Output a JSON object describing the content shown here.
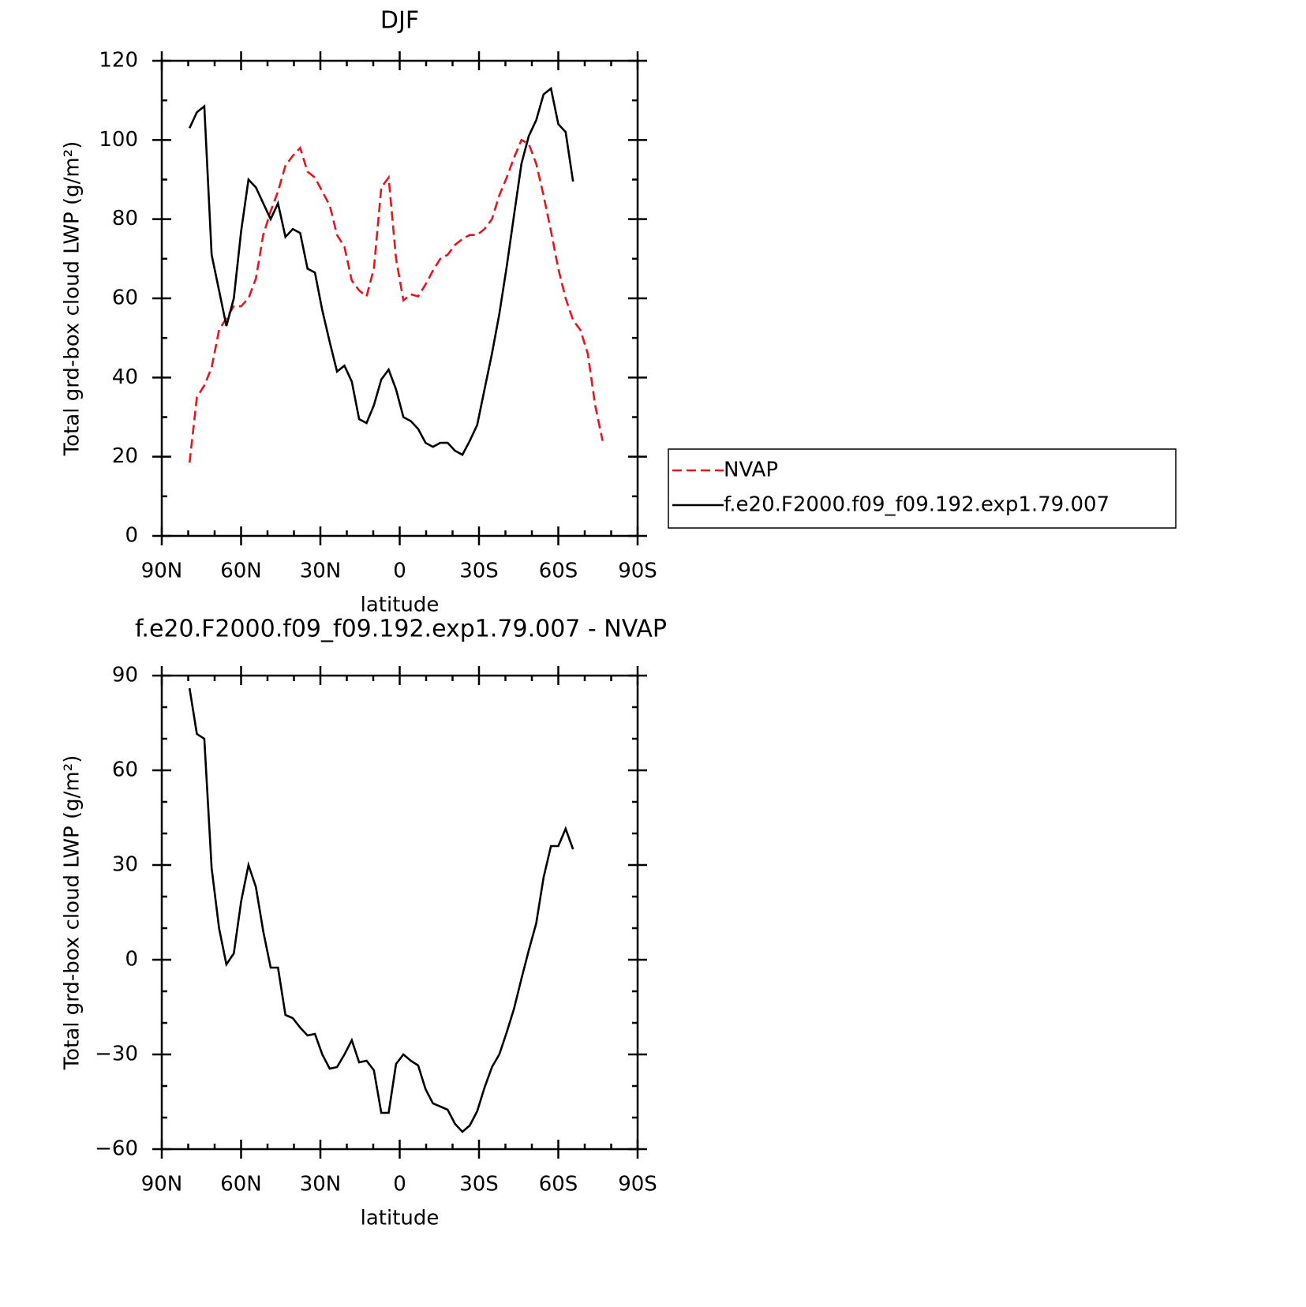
{
  "chart_data": [
    {
      "type": "line",
      "title": "DJF",
      "xlabel": "latitude",
      "ylabel": "Total grd-box cloud LWP (g/m²)",
      "xlim": [
        90,
        -90
      ],
      "xticks": [
        {
          "value": 90,
          "label": "90N"
        },
        {
          "value": 60,
          "label": "60N"
        },
        {
          "value": 30,
          "label": "30N"
        },
        0,
        {
          "value": -30,
          "label": "30S"
        },
        {
          "value": -60,
          "label": "60S"
        },
        {
          "value": -90,
          "label": "90S"
        }
      ],
      "ylim": [
        0,
        120
      ],
      "yticks": [
        0,
        20,
        40,
        60,
        80,
        100,
        120
      ],
      "legend": "right",
      "x": [
        79.5,
        76.71,
        73.92,
        71.13,
        68.34,
        65.55,
        62.76,
        59.97,
        57.18,
        54.39,
        51.6,
        48.81,
        46.02,
        43.23,
        40.44,
        37.65,
        34.86,
        32.07,
        29.28,
        26.49,
        23.7,
        20.91,
        18.12,
        15.33,
        12.54,
        9.75,
        6.96,
        4.17,
        1.38,
        -1.41,
        -4.2,
        -6.99,
        -9.78,
        -12.57,
        -15.36,
        -18.15,
        -20.94,
        -23.73,
        -26.52,
        -29.31,
        -32.1,
        -34.89,
        -37.68,
        -40.47,
        -43.26,
        -46.05,
        -48.84,
        -51.63,
        -54.42,
        -57.21,
        -60,
        -62.79,
        -65.58,
        -68.37,
        -71.16,
        -73.95,
        -76.74
      ],
      "series": [
        {
          "name": "NVAP",
          "color": "#e8141b",
          "dashed": true,
          "values": [
            18.5,
            35,
            38,
            42.5,
            52,
            55,
            58,
            58,
            60,
            65,
            76,
            82,
            87,
            93.5,
            96,
            98,
            92,
            90.5,
            87,
            83.5,
            76,
            73,
            64.5,
            62,
            60.5,
            67.5,
            88,
            90.5,
            70,
            59.5,
            61,
            60.5,
            63.5,
            67,
            70,
            71,
            73.5,
            75,
            76,
            76,
            77.5,
            80,
            86,
            90.5,
            95.5,
            100,
            99,
            94,
            86,
            77,
            67.5,
            60,
            54.5,
            52,
            46,
            33,
            24
          ]
        },
        {
          "name": "f.e20.F2000.f09_f09.192.exp1.79.007",
          "color": "#000000",
          "dashed": false,
          "values": [
            103,
            107,
            108.5,
            71,
            62,
            53,
            60,
            77,
            90,
            88,
            84,
            80,
            84,
            75.5,
            77.5,
            76.5,
            67.5,
            66.5,
            57,
            49,
            41.5,
            43,
            39,
            29.5,
            28.5,
            33,
            39.5,
            42,
            37,
            30,
            29,
            27,
            23.5,
            22.5,
            23.5,
            23.5,
            21.5,
            20.5,
            24,
            28,
            37,
            46,
            56,
            68,
            81,
            94,
            101,
            105,
            111.5,
            113,
            104,
            102,
            89.5,
            null,
            null,
            null,
            null
          ]
        }
      ]
    },
    {
      "type": "line",
      "title": "f.e20.F2000.f09_f09.192.exp1.79.007 - NVAP",
      "xlabel": "latitude",
      "ylabel": "Total grd-box cloud LWP (g/m²)",
      "xlim": [
        90,
        -90
      ],
      "xticks": [
        {
          "value": 90,
          "label": "90N"
        },
        {
          "value": 60,
          "label": "60N"
        },
        {
          "value": 30,
          "label": "30N"
        },
        0,
        {
          "value": -30,
          "label": "30S"
        },
        {
          "value": -60,
          "label": "60S"
        },
        {
          "value": -90,
          "label": "90S"
        }
      ],
      "ylim": [
        -60,
        90
      ],
      "yticks": [
        {
          "value": -60,
          "label": "−60"
        },
        {
          "value": -30,
          "label": "−30"
        },
        0,
        30,
        60,
        90
      ],
      "x": [
        79.5,
        76.71,
        73.92,
        71.13,
        68.34,
        65.55,
        62.76,
        59.97,
        57.18,
        54.39,
        51.6,
        48.81,
        46.02,
        43.23,
        40.44,
        37.65,
        34.86,
        32.07,
        29.28,
        26.49,
        23.7,
        20.91,
        18.12,
        15.33,
        12.54,
        9.75,
        6.96,
        4.17,
        1.38,
        -1.41,
        -4.2,
        -6.99,
        -9.78,
        -12.57,
        -15.36,
        -18.15,
        -20.94,
        -23.73,
        -26.52,
        -29.31,
        -32.1,
        -34.89,
        -37.68,
        -40.47,
        -43.26,
        -46.05,
        -48.84,
        -51.63,
        -54.42,
        -57.21,
        -60,
        -62.79,
        -65.58
      ],
      "series": [
        {
          "color": "#000000",
          "dashed": false,
          "values": [
            86,
            71.5,
            70,
            29,
            10,
            -1.5,
            2,
            18.5,
            30,
            23,
            9,
            -2.5,
            -2.5,
            -17.5,
            -18.5,
            -21.5,
            -24,
            -23.5,
            -30,
            -34.5,
            -34,
            -30,
            -25.5,
            -32.5,
            -32,
            -35,
            -48.5,
            -48.5,
            -33,
            -30,
            -32,
            -33.5,
            -41,
            -45.5,
            -46.5,
            -47.5,
            -52,
            -54.5,
            -52.5,
            -48,
            -40.5,
            -34,
            -30,
            -23,
            -15.5,
            -6,
            3,
            11.5,
            26,
            36,
            36,
            41.5,
            35
          ]
        }
      ]
    }
  ]
}
